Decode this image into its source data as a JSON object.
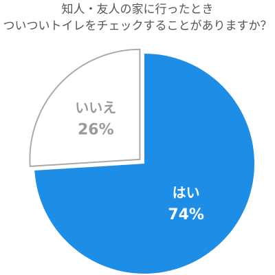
{
  "title_lines": [
    "知人・友人の家に行ったとき",
    "ついついトイレをチェックすることがありますか？"
  ],
  "chart_data": {
    "type": "pie",
    "title": "知人・友人の家に行ったとき ついついトイレをチェックすることがありますか？",
    "slices": [
      {
        "label": "はい",
        "value": 74,
        "value_label": "74%",
        "color": "#1e8de6",
        "text_color": "#ffffff"
      },
      {
        "label": "いいえ",
        "value": 26,
        "value_label": "26%",
        "color": "#ffffff",
        "stroke": "#aaaaaa",
        "text_color": "#9a9a9a"
      }
    ]
  }
}
